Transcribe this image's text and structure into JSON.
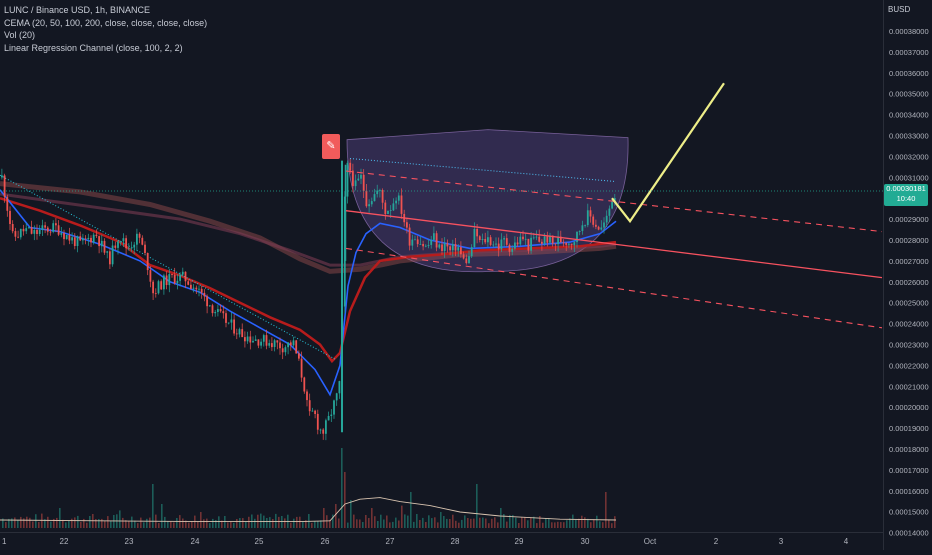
{
  "legend": {
    "title": "LUNC / Binance USD, 1h, BINANCE",
    "indicator1": "CEMA (20, 50, 100, 200, close, close, close, close)",
    "indicator2": "Vol (20)",
    "indicator3": "Linear Regression Channel (close, 100, 2, 2)"
  },
  "price_axis": {
    "currency": "BUSD",
    "ticks": [
      "0.00038000",
      "0.00037000",
      "0.00036000",
      "0.00035000",
      "0.00034000",
      "0.00033000",
      "0.00032000",
      "0.00031000",
      "0.00029000",
      "0.00028000",
      "0.00027000",
      "0.00026000",
      "0.00025000",
      "0.00024000",
      "0.00023000",
      "0.00022000",
      "0.00021000",
      "0.00020000",
      "0.00019000",
      "0.00018000",
      "0.00017000",
      "0.00016000",
      "0.00015000",
      "0.00014000"
    ]
  },
  "current_price": {
    "value": "0.00030181",
    "countdown": "10:40"
  },
  "alert_icon": "pencil-icon",
  "colors": {
    "background": "#131722",
    "candle_up": "#26a69a",
    "candle_down": "#ef5350",
    "ema_fast": "#2962ff",
    "ema_slow": "#b71c1c",
    "regression_line": "#f7525f",
    "projection": "#eeee88",
    "cup_fill": "#6a4fa3"
  },
  "chart_data": {
    "type": "candlestick",
    "title": "LUNC / Binance USD, 1h, BINANCE",
    "xlabel": "",
    "ylabel": "",
    "x_tick_labels": [
      "1",
      "22",
      "23",
      "24",
      "25",
      "26",
      "27",
      "28",
      "29",
      "30",
      "Oct",
      "2",
      "3",
      "4"
    ],
    "y_range": [
      0.000137,
      0.000392
    ],
    "grid": false,
    "price_path": [
      [
        1,
        0.00031
      ],
      [
        12,
        0.000281
      ],
      [
        24,
        0.000285
      ],
      [
        33,
        0.000283
      ],
      [
        43,
        0.000285
      ],
      [
        56,
        0.000286
      ],
      [
        68,
        0.000281
      ],
      [
        80,
        0.000278
      ],
      [
        95,
        0.000283
      ],
      [
        108,
        0.00027
      ],
      [
        118,
        0.000283
      ],
      [
        126,
        0.000276
      ],
      [
        138,
        0.000282
      ],
      [
        148,
        0.000266
      ],
      [
        152,
        0.000255
      ],
      [
        162,
        0.00026
      ],
      [
        172,
        0.000262
      ],
      [
        183,
        0.000262
      ],
      [
        195,
        0.000257
      ],
      [
        206,
        0.000251
      ],
      [
        218,
        0.000244
      ],
      [
        228,
        0.00024
      ],
      [
        238,
        0.000236
      ],
      [
        250,
        0.000233
      ],
      [
        262,
        0.000232
      ],
      [
        272,
        0.000231
      ],
      [
        282,
        0.000229
      ],
      [
        292,
        0.000231
      ],
      [
        298,
        0.000221
      ],
      [
        303,
        0.000211
      ],
      [
        308,
        0.000195
      ],
      [
        313,
        0.000198
      ],
      [
        318,
        0.00019
      ],
      [
        322,
        0.000188
      ],
      [
        327,
        0.000193
      ],
      [
        332,
        0.0002
      ],
      [
        336,
        0.000205
      ],
      [
        340,
        0.000215
      ],
      [
        343,
        0.000292
      ],
      [
        346,
        0.000315
      ],
      [
        349,
        0.000314
      ],
      [
        354,
        0.000305
      ],
      [
        360,
        0.00031
      ],
      [
        366,
        0.000298
      ],
      [
        372,
        0.000301
      ],
      [
        378,
        0.000304
      ],
      [
        384,
        0.000294
      ],
      [
        390,
        0.000296
      ],
      [
        396,
        0.000302
      ],
      [
        402,
        0.000292
      ],
      [
        408,
        0.00028
      ],
      [
        414,
        0.000282
      ],
      [
        420,
        0.000279
      ],
      [
        426,
        0.000276
      ],
      [
        432,
        0.000282
      ],
      [
        438,
        0.000276
      ],
      [
        444,
        0.000278
      ],
      [
        450,
        0.000274
      ],
      [
        456,
        0.000278
      ],
      [
        462,
        0.00027
      ],
      [
        468,
        0.000271
      ],
      [
        474,
        0.000284
      ],
      [
        480,
        0.000278
      ],
      [
        486,
        0.000281
      ],
      [
        492,
        0.000279
      ],
      [
        498,
        0.000277
      ],
      [
        504,
        0.00028
      ],
      [
        510,
        0.000276
      ],
      [
        516,
        0.000279
      ],
      [
        522,
        0.000281
      ],
      [
        528,
        0.000277
      ],
      [
        534,
        0.000281
      ],
      [
        540,
        0.000279
      ],
      [
        546,
        0.000281
      ],
      [
        552,
        0.000278
      ],
      [
        558,
        0.00028
      ],
      [
        564,
        0.00028
      ],
      [
        570,
        0.000279
      ],
      [
        576,
        0.000282
      ],
      [
        582,
        0.000289
      ],
      [
        588,
        0.000292
      ],
      [
        594,
        0.000288
      ],
      [
        600,
        0.000285
      ],
      [
        606,
        0.00029
      ],
      [
        612,
        0.000302
      ],
      [
        616,
        0.000301
      ]
    ],
    "ema_fast": [
      [
        0,
        0.000304
      ],
      [
        30,
        0.000286
      ],
      [
        60,
        0.000284
      ],
      [
        100,
        0.000278
      ],
      [
        140,
        0.00027
      ],
      [
        170,
        0.00026
      ],
      [
        200,
        0.000255
      ],
      [
        230,
        0.000246
      ],
      [
        260,
        0.000238
      ],
      [
        290,
        0.00023
      ],
      [
        315,
        0.000218
      ],
      [
        330,
        0.000206
      ],
      [
        340,
        0.00022
      ],
      [
        348,
        0.000258
      ],
      [
        356,
        0.000274
      ],
      [
        366,
        0.000283
      ],
      [
        380,
        0.000288
      ],
      [
        400,
        0.000286
      ],
      [
        430,
        0.00028
      ],
      [
        470,
        0.000276
      ],
      [
        520,
        0.000277
      ],
      [
        570,
        0.000279
      ],
      [
        600,
        0.000283
      ],
      [
        616,
        0.000289
      ]
    ],
    "ema_slow": [
      [
        0,
        0.0003
      ],
      [
        40,
        0.000294
      ],
      [
        80,
        0.000287
      ],
      [
        120,
        0.000279
      ],
      [
        150,
        0.000268
      ],
      [
        180,
        0.000263
      ],
      [
        210,
        0.000257
      ],
      [
        240,
        0.00025
      ],
      [
        270,
        0.000243
      ],
      [
        300,
        0.000237
      ],
      [
        320,
        0.00023
      ],
      [
        332,
        0.000222
      ],
      [
        340,
        0.000226
      ],
      [
        350,
        0.000246
      ],
      [
        365,
        0.000262
      ],
      [
        380,
        0.00027
      ],
      [
        410,
        0.000272
      ],
      [
        440,
        0.000273
      ],
      [
        480,
        0.000275
      ],
      [
        530,
        0.000276
      ],
      [
        580,
        0.000277
      ],
      [
        616,
        0.000279
      ]
    ],
    "ema_100": [
      [
        0,
        0.000302
      ],
      [
        60,
        0.000298
      ],
      [
        120,
        0.000294
      ],
      [
        180,
        0.00029
      ],
      [
        240,
        0.000283
      ],
      [
        290,
        0.000275
      ],
      [
        330,
        0.000268
      ],
      [
        360,
        0.000268
      ],
      [
        400,
        0.000272
      ],
      [
        460,
        0.000274
      ],
      [
        530,
        0.000275
      ],
      [
        600,
        0.000277
      ],
      [
        616,
        0.000278
      ]
    ],
    "ema_200": [
      [
        0,
        0.000307
      ],
      [
        80,
        0.000303
      ],
      [
        150,
        0.000297
      ],
      [
        210,
        0.000289
      ],
      [
        260,
        0.000281
      ],
      [
        300,
        0.000271
      ],
      [
        330,
        0.000265
      ],
      [
        360,
        0.000266
      ],
      [
        400,
        0.00027
      ],
      [
        460,
        0.000273
      ],
      [
        530,
        0.000274
      ],
      [
        600,
        0.000276
      ],
      [
        616,
        0.000277
      ]
    ],
    "volume": [
      [
        10,
        0.12
      ],
      [
        40,
        0.18
      ],
      [
        60,
        0.25
      ],
      [
        90,
        0.15
      ],
      [
        118,
        0.22
      ],
      [
        152,
        0.55
      ],
      [
        160,
        0.3
      ],
      [
        200,
        0.2
      ],
      [
        225,
        0.15
      ],
      [
        260,
        0.18
      ],
      [
        300,
        0.12
      ],
      [
        322,
        0.25
      ],
      [
        336,
        0.3
      ],
      [
        342,
        1.0
      ],
      [
        345,
        0.7
      ],
      [
        350,
        0.35
      ],
      [
        370,
        0.25
      ],
      [
        400,
        0.28
      ],
      [
        410,
        0.45
      ],
      [
        440,
        0.2
      ],
      [
        475,
        0.55
      ],
      [
        500,
        0.25
      ],
      [
        540,
        0.15
      ],
      [
        570,
        0.12
      ],
      [
        605,
        0.45
      ]
    ],
    "volume_ma": [
      [
        0,
        0.1
      ],
      [
        100,
        0.09
      ],
      [
        200,
        0.08
      ],
      [
        300,
        0.08
      ],
      [
        330,
        0.09
      ],
      [
        345,
        0.3
      ],
      [
        360,
        0.36
      ],
      [
        380,
        0.38
      ],
      [
        400,
        0.33
      ],
      [
        430,
        0.28
      ],
      [
        460,
        0.2
      ],
      [
        500,
        0.15
      ],
      [
        560,
        0.11
      ],
      [
        616,
        0.1
      ]
    ],
    "regression_channel": {
      "mid": [
        [
          346,
          0.000294
        ],
        [
          882,
          0.000262
        ]
      ],
      "upper": [
        [
          346,
          0.000313
        ],
        [
          882,
          0.000284
        ]
      ],
      "lower": [
        [
          346,
          0.000276
        ],
        [
          882,
          0.000238
        ]
      ]
    },
    "trendline_dotted": [
      [
        0,
        0.000311
      ],
      [
        335,
        0.000223
      ]
    ],
    "cup_shape": {
      "rim_left": [
        347,
        0.000328
      ],
      "rim_right": [
        628,
        0.000329
      ],
      "bottom": [
        490,
        0.000265
      ]
    },
    "projection": [
      [
        612,
        0.0003
      ],
      [
        630,
        0.000289
      ],
      [
        724,
        0.000355
      ]
    ]
  }
}
